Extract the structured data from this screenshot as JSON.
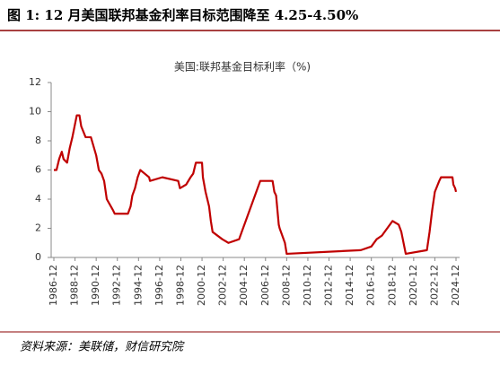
{
  "chart_data": {
    "type": "line",
    "figure_title": "图 1: 12 月美国联邦基金利率目标范围降至 4.25-4.50%",
    "title": "美国:联邦基金目标利率（%)",
    "source": "资料来源：美联储，财信研究院",
    "x": [
      "1986-12",
      "1987-03",
      "1987-06",
      "1987-09",
      "1987-11",
      "1988-03",
      "1988-06",
      "1988-09",
      "1989-02",
      "1989-05",
      "1989-07",
      "1989-12",
      "1990-06",
      "1990-12",
      "1991-03",
      "1991-06",
      "1991-09",
      "1991-12",
      "1992-07",
      "1992-09",
      "1993-12",
      "1994-03",
      "1994-05",
      "1994-08",
      "1994-11",
      "1995-02",
      "1995-07",
      "1995-12",
      "1996-01",
      "1997-03",
      "1998-09",
      "1998-11",
      "1999-06",
      "1999-11",
      "2000-02",
      "2000-05",
      "2000-12",
      "2001-01",
      "2001-04",
      "2001-08",
      "2001-10",
      "2001-12",
      "2002-11",
      "2003-06",
      "2004-06",
      "2004-12",
      "2005-06",
      "2005-12",
      "2006-06",
      "2007-08",
      "2007-10",
      "2007-12",
      "2008-03",
      "2008-04",
      "2008-10",
      "2008-12",
      "2015-12",
      "2016-12",
      "2017-06",
      "2017-12",
      "2018-06",
      "2018-12",
      "2019-07",
      "2019-10",
      "2020-03",
      "2022-03",
      "2022-06",
      "2022-09",
      "2022-12",
      "2023-05",
      "2023-07",
      "2024-08",
      "2024-09",
      "2024-11",
      "2024-12"
    ],
    "series": [
      {
        "name": "美国:联邦基金目标利率",
        "color": "#c00000",
        "values": [
          6,
          6,
          6.75,
          7.25,
          6.75,
          6.5,
          7.5,
          8.25,
          9.75,
          9.75,
          9,
          8.25,
          8.25,
          7,
          6,
          5.75,
          5.25,
          4,
          3.25,
          3,
          3,
          3.5,
          4.25,
          4.75,
          5.5,
          6,
          5.75,
          5.5,
          5.25,
          5.5,
          5.25,
          4.75,
          5,
          5.5,
          5.75,
          6.5,
          6.5,
          5.5,
          4.5,
          3.5,
          2.5,
          1.75,
          1.25,
          1,
          1.25,
          2.25,
          3.25,
          4.25,
          5.25,
          5.25,
          4.5,
          4.25,
          2.25,
          2,
          1,
          0.25,
          0.5,
          0.75,
          1.25,
          1.5,
          2,
          2.5,
          2.25,
          1.75,
          0.25,
          0.5,
          1.75,
          3.25,
          4.5,
          5.25,
          5.5,
          5.5,
          5,
          4.75,
          4.5
        ]
      }
    ],
    "xticks": [
      "1986-12",
      "1988-12",
      "1990-12",
      "1992-12",
      "1994-12",
      "1996-12",
      "1998-12",
      "2000-12",
      "2002-12",
      "2004-12",
      "2006-12",
      "2008-12",
      "2010-12",
      "2012-12",
      "2014-12",
      "2016-12",
      "2018-12",
      "2020-12",
      "2022-12",
      "2024-12"
    ],
    "ylim": [
      0,
      12
    ],
    "yticks": [
      0,
      2,
      4,
      6,
      8,
      10,
      12
    ]
  }
}
